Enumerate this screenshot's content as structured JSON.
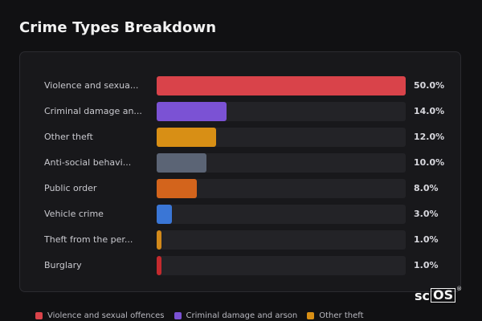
{
  "title": "Crime Types Breakdown",
  "chart_data": {
    "type": "bar",
    "orientation": "horizontal",
    "categories": [
      "Violence and sexual offences",
      "Criminal damage and arson",
      "Other theft",
      "Anti-social behaviour",
      "Public order",
      "Vehicle crime",
      "Theft from the person",
      "Burglary"
    ],
    "display_labels": [
      "Violence and sexua...",
      "Criminal damage an...",
      "Other theft",
      "Anti-social behavi...",
      "Public order",
      "Vehicle crime",
      "Theft from the per...",
      "Burglary"
    ],
    "values": [
      50.0,
      14.0,
      12.0,
      10.0,
      8.0,
      3.0,
      1.0,
      1.0
    ],
    "value_labels": [
      "50.0%",
      "14.0%",
      "12.0%",
      "10.0%",
      "8.0%",
      "3.0%",
      "1.0%",
      "1.0%"
    ],
    "colors": [
      "#d9434a",
      "#7b52d4",
      "#d88f15",
      "#5b6475",
      "#d3641c",
      "#3a76d6",
      "#d2891a",
      "#c42a2e"
    ],
    "xlim": [
      0,
      50
    ],
    "grid": false,
    "legend_position": "bottom"
  },
  "legend": [
    {
      "label": "Violence and sexual offences",
      "color": "#d9434a"
    },
    {
      "label": "Criminal damage and arson",
      "color": "#7b52d4"
    },
    {
      "label": "Other theft",
      "color": "#d88f15"
    }
  ],
  "brand": {
    "prefix": "sc",
    "boxed": "OS",
    "mark": "®"
  }
}
